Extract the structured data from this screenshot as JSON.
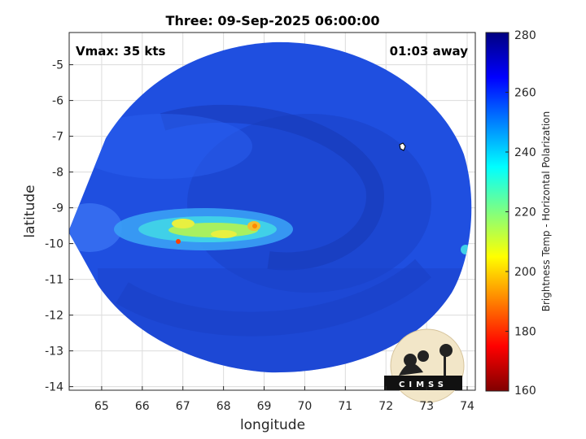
{
  "title": "Three: 09-Sep-2025 06:00:00",
  "vmax_label": "Vmax: 35 kts",
  "time_label": "01:03 away",
  "x_axis": {
    "label": "longitude",
    "range": [
      64.2,
      74.2
    ],
    "ticks": [
      "65",
      "66",
      "67",
      "68",
      "69",
      "70",
      "71",
      "72",
      "73",
      "74"
    ]
  },
  "y_axis": {
    "label": "latitude",
    "range": [
      -14.1,
      -4.1
    ],
    "ticks": [
      "-5",
      "-6",
      "-7",
      "-8",
      "-9",
      "-10",
      "-11",
      "-12",
      "-13",
      "-14"
    ]
  },
  "colorbar": {
    "label": "Brightness Temp - Horizontal Polarization",
    "ticks": [
      "280",
      "260",
      "240",
      "220",
      "200",
      "180",
      "160"
    ],
    "range": [
      160,
      280
    ],
    "colors": [
      "#800000",
      "#ff0000",
      "#ff8000",
      "#ffff00",
      "#80ff80",
      "#00ffff",
      "#0080ff",
      "#0000ff",
      "#000080"
    ]
  },
  "map": {
    "swath_fill": "#1f4fe0",
    "grid": true,
    "logo_text": "CIMSS"
  }
}
